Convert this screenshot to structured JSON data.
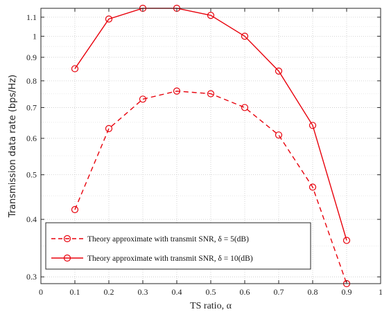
{
  "chart_data": {
    "type": "line",
    "xlabel": "TS ratio, α",
    "ylabel": "Transmission data rate (bps/Hz)",
    "x": [
      0.1,
      0.2,
      0.3,
      0.4,
      0.5,
      0.6,
      0.7,
      0.8,
      0.9
    ],
    "xlim": [
      0,
      1
    ],
    "ylim": [
      0.29,
      1.15
    ],
    "yscale": "log",
    "grid": true,
    "x_ticks": [
      "0",
      "0.1",
      "0.2",
      "0.3",
      "0.4",
      "0.5",
      "0.6",
      "0.7",
      "0.8",
      "0.9",
      "1"
    ],
    "y_ticks": [
      {
        "value": 0.3,
        "label": "0.3"
      },
      {
        "value": 0.4,
        "label": "0.4"
      },
      {
        "value": 0.5,
        "label": "0.5"
      },
      {
        "value": 0.6,
        "label": "0.6"
      },
      {
        "value": 0.7,
        "label": "0.7"
      },
      {
        "value": 0.8,
        "label": "0.8"
      },
      {
        "value": 0.9,
        "label": "0.9"
      },
      {
        "value": 1.0,
        "label": "1"
      },
      {
        "value": 1.1,
        "label": "1.1"
      }
    ],
    "legend_position": "bottom-left",
    "series": [
      {
        "name": "Theory approximate with transmit SNR, δ = 5(dB)",
        "values": [
          0.42,
          0.63,
          0.73,
          0.76,
          0.75,
          0.7,
          0.61,
          0.47,
          0.29
        ],
        "color": "#e8000b",
        "style": "dashed",
        "marker": "circle"
      },
      {
        "name": "Theory approximate with transmit SNR, δ = 10(dB)",
        "values": [
          0.85,
          1.09,
          1.15,
          1.15,
          1.11,
          1.0,
          0.84,
          0.64,
          0.36
        ],
        "color": "#e8000b",
        "style": "solid",
        "marker": "circle"
      }
    ]
  }
}
